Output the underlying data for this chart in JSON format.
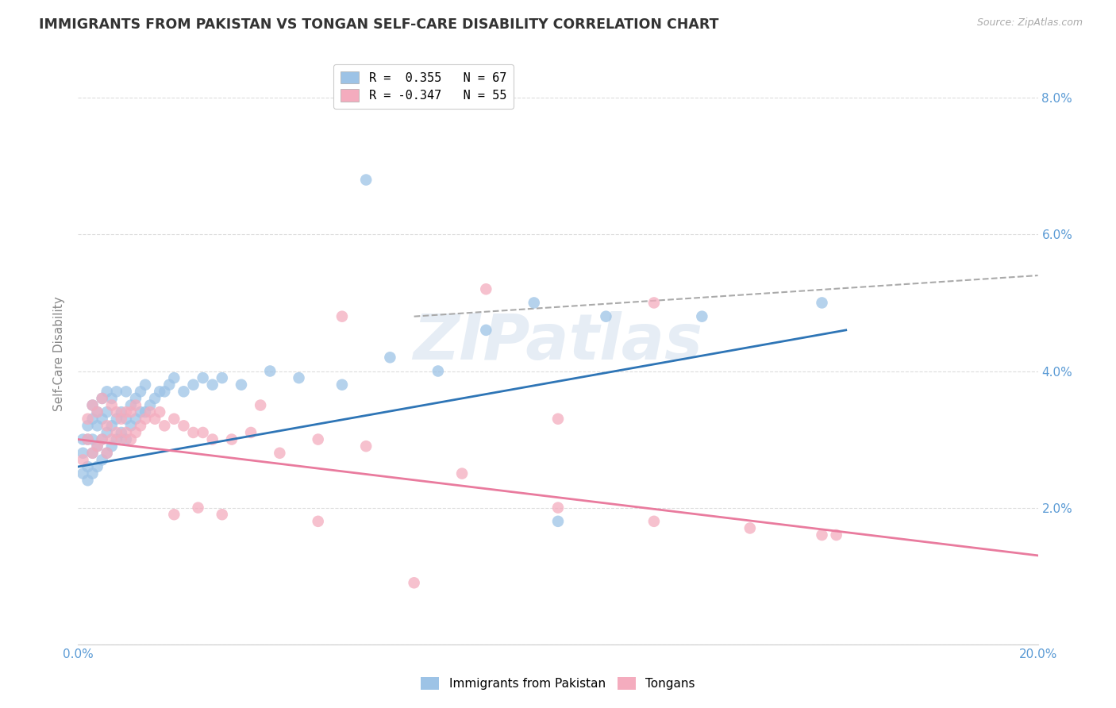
{
  "title": "IMMIGRANTS FROM PAKISTAN VS TONGAN SELF-CARE DISABILITY CORRELATION CHART",
  "source": "Source: ZipAtlas.com",
  "ylabel": "Self-Care Disability",
  "xlim": [
    0.0,
    0.2
  ],
  "ylim": [
    0.0,
    0.085
  ],
  "yticks": [
    0.0,
    0.02,
    0.04,
    0.06,
    0.08
  ],
  "ytick_labels_left": [
    "",
    "",
    "",
    "",
    ""
  ],
  "ytick_labels_right": [
    "",
    "2.0%",
    "4.0%",
    "6.0%",
    "8.0%"
  ],
  "xticks": [
    0.0,
    0.04,
    0.08,
    0.12,
    0.16,
    0.2
  ],
  "xtick_labels": [
    "0.0%",
    "",
    "",
    "",
    "",
    "20.0%"
  ],
  "legend_r1": "R =  0.355   N = 67",
  "legend_r2": "R = -0.347   N = 55",
  "blue_color": "#9DC3E6",
  "pink_color": "#F4ACBE",
  "blue_line_color": "#2E75B6",
  "pink_line_color": "#E97B9E",
  "dashed_line_color": "#AAAAAA",
  "watermark_text": "ZIPatlas",
  "pakistan_x": [
    0.001,
    0.001,
    0.001,
    0.002,
    0.002,
    0.002,
    0.002,
    0.003,
    0.003,
    0.003,
    0.003,
    0.003,
    0.004,
    0.004,
    0.004,
    0.004,
    0.005,
    0.005,
    0.005,
    0.005,
    0.006,
    0.006,
    0.006,
    0.006,
    0.007,
    0.007,
    0.007,
    0.008,
    0.008,
    0.008,
    0.009,
    0.009,
    0.01,
    0.01,
    0.01,
    0.011,
    0.011,
    0.012,
    0.012,
    0.013,
    0.013,
    0.014,
    0.014,
    0.015,
    0.016,
    0.017,
    0.018,
    0.019,
    0.02,
    0.022,
    0.024,
    0.026,
    0.028,
    0.03,
    0.034,
    0.04,
    0.046,
    0.055,
    0.065,
    0.075,
    0.085,
    0.095,
    0.11,
    0.13,
    0.155,
    0.1,
    0.06
  ],
  "pakistan_y": [
    0.025,
    0.028,
    0.03,
    0.024,
    0.026,
    0.03,
    0.032,
    0.025,
    0.028,
    0.03,
    0.033,
    0.035,
    0.026,
    0.029,
    0.032,
    0.034,
    0.027,
    0.03,
    0.033,
    0.036,
    0.028,
    0.031,
    0.034,
    0.037,
    0.029,
    0.032,
    0.036,
    0.03,
    0.033,
    0.037,
    0.031,
    0.034,
    0.03,
    0.033,
    0.037,
    0.032,
    0.035,
    0.033,
    0.036,
    0.034,
    0.037,
    0.034,
    0.038,
    0.035,
    0.036,
    0.037,
    0.037,
    0.038,
    0.039,
    0.037,
    0.038,
    0.039,
    0.038,
    0.039,
    0.038,
    0.04,
    0.039,
    0.038,
    0.042,
    0.04,
    0.046,
    0.05,
    0.048,
    0.048,
    0.05,
    0.018,
    0.068
  ],
  "tongan_x": [
    0.001,
    0.002,
    0.002,
    0.003,
    0.003,
    0.004,
    0.004,
    0.005,
    0.005,
    0.006,
    0.006,
    0.007,
    0.007,
    0.008,
    0.008,
    0.009,
    0.009,
    0.01,
    0.01,
    0.011,
    0.011,
    0.012,
    0.012,
    0.013,
    0.014,
    0.015,
    0.016,
    0.017,
    0.018,
    0.02,
    0.022,
    0.024,
    0.026,
    0.028,
    0.032,
    0.036,
    0.042,
    0.05,
    0.06,
    0.08,
    0.1,
    0.12,
    0.14,
    0.155,
    0.158,
    0.12,
    0.085,
    0.055,
    0.1,
    0.038,
    0.03,
    0.025,
    0.02,
    0.05,
    0.07
  ],
  "tongan_y": [
    0.027,
    0.03,
    0.033,
    0.028,
    0.035,
    0.029,
    0.034,
    0.03,
    0.036,
    0.028,
    0.032,
    0.03,
    0.035,
    0.031,
    0.034,
    0.03,
    0.033,
    0.031,
    0.034,
    0.03,
    0.034,
    0.031,
    0.035,
    0.032,
    0.033,
    0.034,
    0.033,
    0.034,
    0.032,
    0.033,
    0.032,
    0.031,
    0.031,
    0.03,
    0.03,
    0.031,
    0.028,
    0.03,
    0.029,
    0.025,
    0.02,
    0.018,
    0.017,
    0.016,
    0.016,
    0.05,
    0.052,
    0.048,
    0.033,
    0.035,
    0.019,
    0.02,
    0.019,
    0.018,
    0.009
  ],
  "blue_line_x0": 0.0,
  "blue_line_y0": 0.026,
  "blue_line_x1": 0.16,
  "blue_line_y1": 0.046,
  "pink_line_x0": 0.0,
  "pink_line_y0": 0.03,
  "pink_line_x1": 0.2,
  "pink_line_y1": 0.013,
  "dash_line_x0": 0.07,
  "dash_line_y0": 0.048,
  "dash_line_x1": 0.2,
  "dash_line_y1": 0.054
}
